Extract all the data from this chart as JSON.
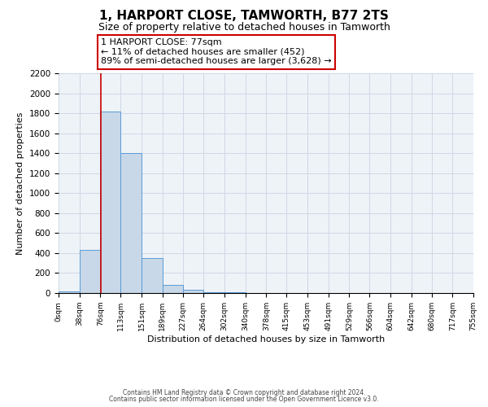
{
  "title": "1, HARPORT CLOSE, TAMWORTH, B77 2TS",
  "subtitle": "Size of property relative to detached houses in Tamworth",
  "xlabel": "Distribution of detached houses by size in Tamworth",
  "ylabel": "Number of detached properties",
  "bar_edges": [
    0,
    38,
    76,
    113,
    151,
    189,
    227,
    264,
    302,
    340,
    378,
    415,
    453,
    491,
    529,
    566,
    604,
    642,
    680,
    717,
    755
  ],
  "bar_heights": [
    20,
    430,
    1820,
    1400,
    350,
    80,
    30,
    10,
    5,
    2,
    1,
    1,
    0,
    0,
    0,
    0,
    0,
    0,
    0,
    0
  ],
  "bar_color": "#c8d8e8",
  "bar_edge_color": "#5b9bd5",
  "property_line_x": 77,
  "property_line_color": "#cc0000",
  "annotation_text": "1 HARPORT CLOSE: 77sqm\n← 11% of detached houses are smaller (452)\n89% of semi-detached houses are larger (3,628) →",
  "annotation_box_color": "#ffffff",
  "annotation_box_edge": "#cc0000",
  "ylim": [
    0,
    2200
  ],
  "yticks": [
    0,
    200,
    400,
    600,
    800,
    1000,
    1200,
    1400,
    1600,
    1800,
    2000,
    2200
  ],
  "xtick_labels": [
    "0sqm",
    "38sqm",
    "76sqm",
    "113sqm",
    "151sqm",
    "189sqm",
    "227sqm",
    "264sqm",
    "302sqm",
    "340sqm",
    "378sqm",
    "415sqm",
    "453sqm",
    "491sqm",
    "529sqm",
    "566sqm",
    "604sqm",
    "642sqm",
    "680sqm",
    "717sqm",
    "755sqm"
  ],
  "footer_line1": "Contains HM Land Registry data © Crown copyright and database right 2024.",
  "footer_line2": "Contains public sector information licensed under the Open Government Licence v3.0.",
  "grid_color": "#d0d8e4",
  "background_color": "#eef3f8",
  "fig_background": "#ffffff",
  "title_fontsize": 11,
  "subtitle_fontsize": 9,
  "annotation_fontsize": 8.0,
  "axis_label_fontsize": 8.0,
  "tick_fontsize": 7.5,
  "xtick_fontsize": 6.5,
  "footer_fontsize": 5.5
}
